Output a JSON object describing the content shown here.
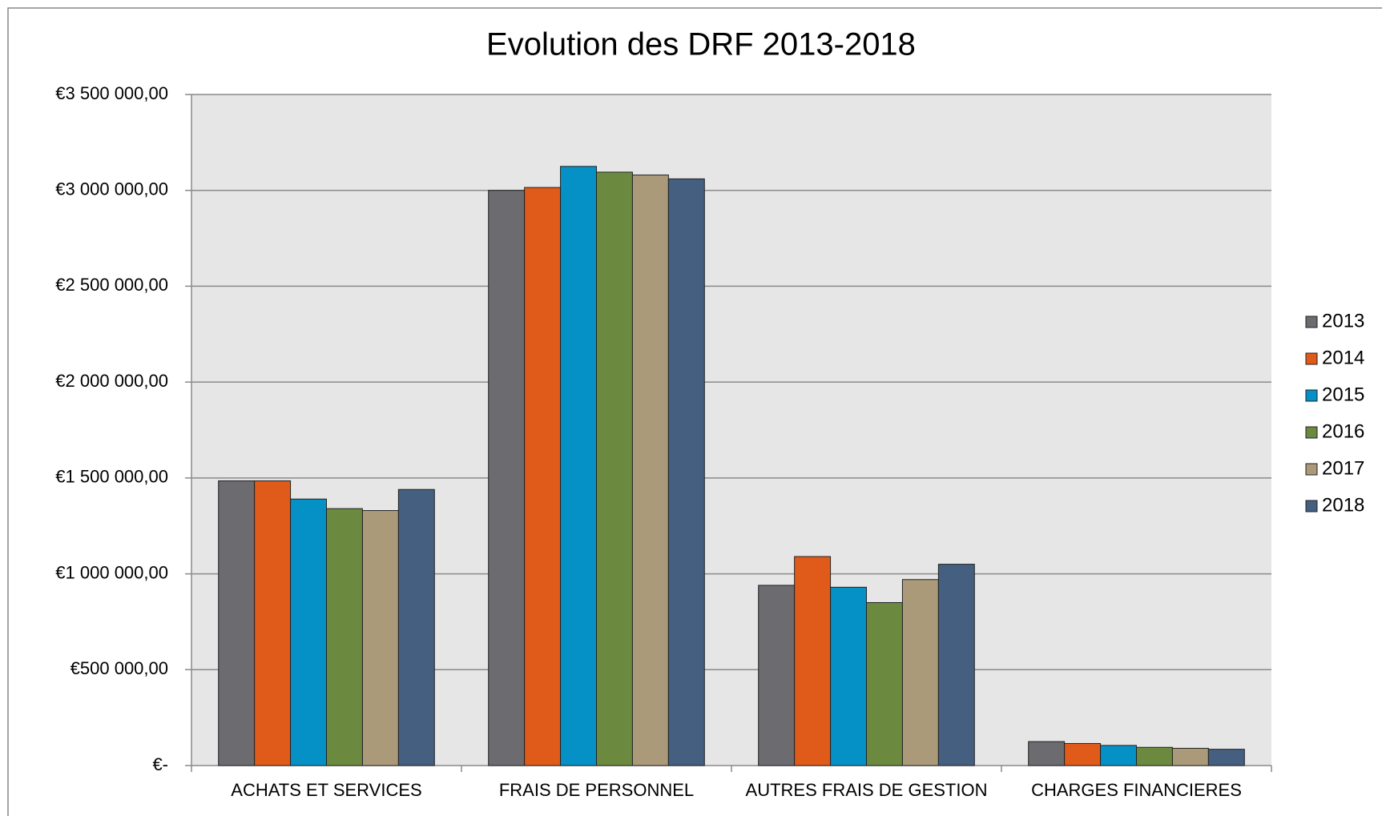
{
  "chart_data": {
    "type": "bar",
    "title": "Evolution des DRF 2013-2018",
    "categories": [
      "ACHATS ET SERVICES",
      "FRAIS DE PERSONNEL",
      "AUTRES FRAIS DE GESTION",
      "CHARGES FINANCIERES"
    ],
    "series": [
      {
        "name": "2013",
        "color": "#6b6b70",
        "values": [
          1485000,
          3000000,
          940000,
          125000
        ]
      },
      {
        "name": "2014",
        "color": "#e05a1a",
        "values": [
          1485000,
          3015000,
          1090000,
          115000
        ]
      },
      {
        "name": "2015",
        "color": "#0590c6",
        "values": [
          1390000,
          3125000,
          930000,
          105000
        ]
      },
      {
        "name": "2016",
        "color": "#6b8a3f",
        "values": [
          1340000,
          3095000,
          850000,
          95000
        ]
      },
      {
        "name": "2017",
        "color": "#ab9a7a",
        "values": [
          1330000,
          3080000,
          970000,
          90000
        ]
      },
      {
        "name": "2018",
        "color": "#455f80",
        "values": [
          1440000,
          3060000,
          1050000,
          85000
        ]
      }
    ],
    "ylim": [
      0,
      3500000
    ],
    "yticks": [
      {
        "value": 0,
        "label": "€-"
      },
      {
        "value": 500000,
        "label": "€500 000,00"
      },
      {
        "value": 1000000,
        "label": "€1 000 000,00"
      },
      {
        "value": 1500000,
        "label": "€1 500 000,00"
      },
      {
        "value": 2000000,
        "label": "€2 000 000,00"
      },
      {
        "value": 2500000,
        "label": "€2 500 000,00"
      },
      {
        "value": 3000000,
        "label": "€3 000 000,00"
      },
      {
        "value": 3500000,
        "label": "€3 500 000,00"
      }
    ],
    "grid": true,
    "legend": "right"
  }
}
